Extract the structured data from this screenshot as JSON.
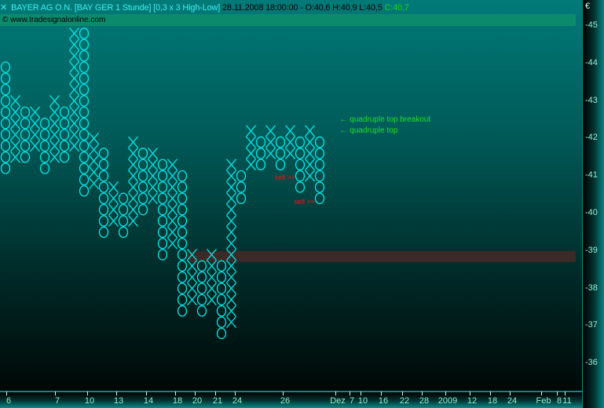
{
  "header": {
    "title": "BAYER AG O.N. [BAY GER  1 Stunde] [0,3 x 3 High-Low]",
    "datetime_ohl": "28.11.2008 18:00:00 - O:40,6 H:40,9 L:40,5",
    "close": "C:40,7",
    "copyright": "© www.tradesignalonline.com"
  },
  "colors": {
    "symbol": "#00e5e5",
    "zone": "#3a2a28",
    "annotation": "#20e020",
    "sell": "#ff1010",
    "band": "#0c8a6c"
  },
  "chart_data": {
    "type": "point_and_figure",
    "box_size": 0.3,
    "reversal": 3,
    "y_unit": "€",
    "ylim": [
      35.6,
      45.5
    ],
    "yticks": [
      "45",
      "44",
      "43",
      "42",
      "41",
      "40",
      "39",
      "38",
      "37",
      "36"
    ],
    "xticks": [
      "6",
      "7",
      "10",
      "13",
      "14",
      "18",
      "20",
      "21",
      "24",
      "26",
      "Dez",
      "7",
      "10",
      "16",
      "22",
      "28",
      "2009",
      "12",
      "18",
      "24",
      "Feb",
      "8",
      "11"
    ],
    "columns": [
      {
        "type": "O",
        "high": 43.9,
        "low": 41.2
      },
      {
        "type": "X",
        "low": 41.5,
        "high": 43.0
      },
      {
        "type": "O",
        "high": 42.7,
        "low": 41.5
      },
      {
        "type": "X",
        "low": 41.8,
        "high": 42.7
      },
      {
        "type": "O",
        "high": 42.4,
        "low": 41.2
      },
      {
        "type": "X",
        "low": 41.5,
        "high": 43.0
      },
      {
        "type": "O",
        "high": 42.7,
        "low": 41.5
      },
      {
        "type": "X",
        "low": 41.8,
        "high": 44.8
      },
      {
        "type": "O",
        "high": 44.8,
        "low": 40.6
      },
      {
        "type": "X",
        "low": 40.8,
        "high": 42.0
      },
      {
        "type": "O",
        "high": 41.6,
        "low": 39.5
      },
      {
        "type": "X",
        "low": 39.8,
        "high": 40.7
      },
      {
        "type": "O",
        "high": 40.4,
        "low": 39.5
      },
      {
        "type": "X",
        "low": 39.8,
        "high": 41.9
      },
      {
        "type": "O",
        "high": 41.6,
        "low": 40.1
      },
      {
        "type": "X",
        "low": 40.4,
        "high": 41.6
      },
      {
        "type": "O",
        "high": 41.3,
        "low": 38.9
      },
      {
        "type": "X",
        "low": 39.2,
        "high": 41.3
      },
      {
        "type": "O",
        "high": 41.0,
        "low": 37.4
      },
      {
        "type": "X",
        "low": 37.7,
        "high": 38.9
      },
      {
        "type": "O",
        "high": 38.6,
        "low": 37.4
      },
      {
        "type": "X",
        "low": 37.7,
        "high": 38.9
      },
      {
        "type": "O",
        "high": 38.6,
        "low": 36.8
      },
      {
        "type": "X",
        "low": 37.1,
        "high": 41.3
      },
      {
        "type": "O",
        "high": 41.0,
        "low": 40.4
      },
      {
        "type": "X",
        "low": 41.3,
        "high": 42.2
      },
      {
        "type": "O",
        "high": 41.9,
        "low": 41.3
      },
      {
        "type": "X",
        "low": 41.6,
        "high": 42.2
      },
      {
        "type": "O",
        "high": 41.9,
        "low": 41.3
      },
      {
        "type": "X",
        "low": 41.6,
        "high": 42.2
      },
      {
        "type": "O",
        "high": 41.9,
        "low": 40.7
      },
      {
        "type": "X",
        "low": 41.0,
        "high": 42.2
      },
      {
        "type": "O",
        "high": 41.9,
        "low": 40.4
      }
    ],
    "zone": {
      "low": 38.7,
      "high": 39.0,
      "start_column": 19
    },
    "signals": [
      {
        "label": "sell >>",
        "column": 30,
        "price": 40.95
      },
      {
        "label": "sell >>",
        "column": 32,
        "price": 40.3
      }
    ],
    "annotations": [
      {
        "text": "← quadruple top breakout",
        "price": 42.5
      },
      {
        "text": "← quadruple top",
        "price": 42.2
      }
    ]
  }
}
